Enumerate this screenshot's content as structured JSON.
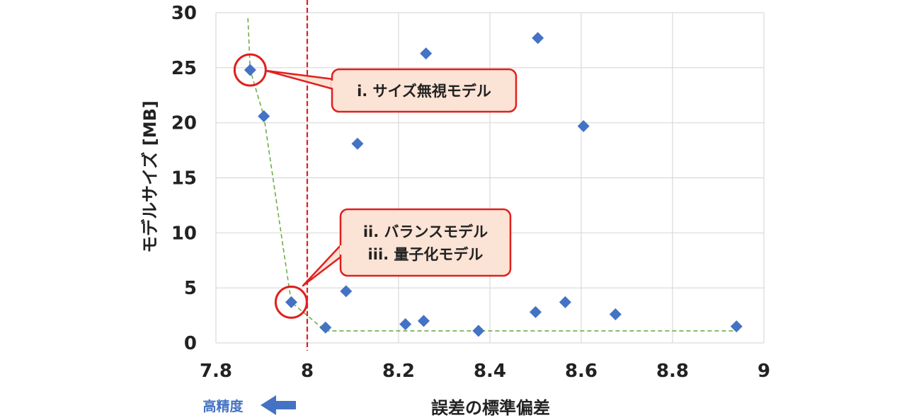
{
  "chart_data": {
    "type": "scatter",
    "xlabel": "誤差の標準偏差",
    "ylabel": "モデルサイズ [MB]",
    "xlim": [
      7.8,
      9
    ],
    "ylim": [
      0,
      30
    ],
    "x_ticks": [
      "7.8",
      "8",
      "8.2",
      "8.4",
      "8.6",
      "8.8",
      "9"
    ],
    "y_ticks": [
      "0",
      "5",
      "10",
      "15",
      "20",
      "25",
      "30"
    ],
    "grid": true,
    "points": [
      {
        "x": 7.875,
        "y": 24.8
      },
      {
        "x": 7.905,
        "y": 20.6
      },
      {
        "x": 7.965,
        "y": 3.7
      },
      {
        "x": 8.04,
        "y": 1.4
      },
      {
        "x": 8.085,
        "y": 4.7
      },
      {
        "x": 8.11,
        "y": 18.1
      },
      {
        "x": 8.215,
        "y": 1.7
      },
      {
        "x": 8.255,
        "y": 2.0
      },
      {
        "x": 8.26,
        "y": 26.3
      },
      {
        "x": 8.375,
        "y": 1.1
      },
      {
        "x": 8.5,
        "y": 2.8
      },
      {
        "x": 8.505,
        "y": 27.7
      },
      {
        "x": 8.565,
        "y": 3.7
      },
      {
        "x": 8.605,
        "y": 19.7
      },
      {
        "x": 8.675,
        "y": 2.6
      },
      {
        "x": 8.94,
        "y": 1.5
      }
    ],
    "pareto_front": [
      {
        "x": 7.87,
        "y": 29.5
      },
      {
        "x": 7.875,
        "y": 24.8
      },
      {
        "x": 7.905,
        "y": 20.6
      },
      {
        "x": 7.965,
        "y": 3.7
      },
      {
        "x": 8.04,
        "y": 1.1
      },
      {
        "x": 8.375,
        "y": 1.1
      },
      {
        "x": 8.94,
        "y": 1.1
      }
    ],
    "reference_line_x": 8.0,
    "series_color": "#4472c4",
    "front_color": "#70ad47",
    "reference_color": "#e0201f",
    "annotations": [
      {
        "lines": [
          "i. サイズ無視モデル"
        ],
        "target": {
          "x": 7.875,
          "y": 24.8
        }
      },
      {
        "lines": [
          "ii. バランスモデル",
          "iii. 量子化モデル"
        ],
        "target": {
          "x": 7.965,
          "y": 3.7
        }
      }
    ],
    "direction_hint": {
      "label": "高精度",
      "arrow": "left",
      "color": "#4472c4"
    }
  }
}
